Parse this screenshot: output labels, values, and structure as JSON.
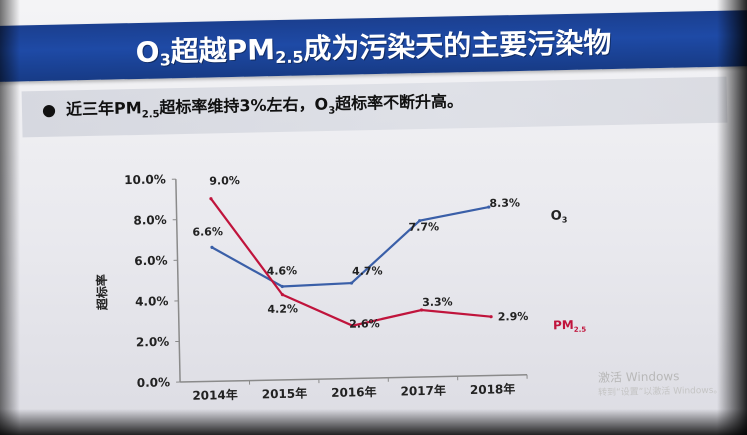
{
  "slide": {
    "title_main": "O",
    "title_sub3": "3",
    "title_mid": "超越PM",
    "title_sub25": "2.5",
    "title_end": "成为污染天的主要污染物",
    "bullet_symbol": "●",
    "bullet_text_a": "近三年PM",
    "bullet_sub": "2.5",
    "bullet_text_b": "超标率维持3%左右，O",
    "bullet_sub2": "3",
    "bullet_text_c": "超标率不断升高。"
  },
  "watermark": {
    "line1": "激活 Windows",
    "line2": "转到“设置”以激活 Windows。"
  },
  "colors": {
    "title_band": "#1e4aa6",
    "o3": "#3a5fa8",
    "pm25": "#c0143c",
    "axis": "#8a8a8a"
  },
  "chart_data": {
    "type": "line",
    "categories": [
      "2014年",
      "2015年",
      "2016年",
      "2017年",
      "2018年"
    ],
    "ylabel": "超标率",
    "ylim": [
      0,
      10
    ],
    "yticks": [
      "0.0%",
      "2.0%",
      "4.0%",
      "6.0%",
      "8.0%",
      "10.0%"
    ],
    "series": [
      {
        "name": "O3",
        "name_main": "O",
        "name_sub": "3",
        "values": [
          6.6,
          4.6,
          4.7,
          7.7,
          8.3
        ],
        "labels": [
          "6.6%",
          "4.6%",
          "4.7%",
          "7.7%",
          "8.3%"
        ]
      },
      {
        "name": "PM2.5",
        "name_main": "PM",
        "name_sub": "2.5",
        "values": [
          9.0,
          4.2,
          2.6,
          3.3,
          2.9
        ],
        "labels": [
          "9.0%",
          "4.2%",
          "2.6%",
          "3.3%",
          "2.9%"
        ]
      }
    ]
  }
}
